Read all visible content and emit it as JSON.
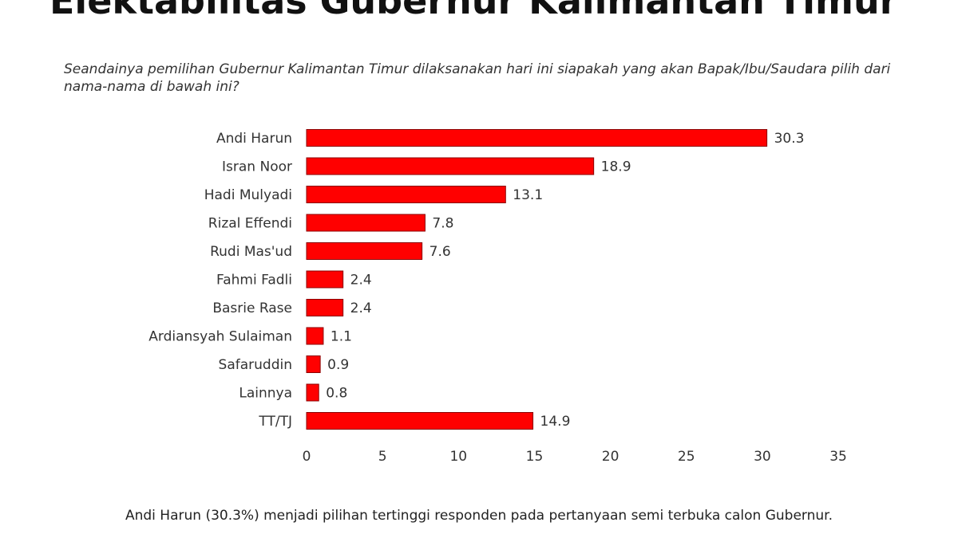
{
  "title": "Elektabilitas Gubernur Kalimantan Timur",
  "question": "Seandainya pemilihan Gubernur Kalimantan Timur dilaksanakan hari ini siapakah yang akan Bapak/Ibu/Saudara pilih dari nama-nama di bawah ini?",
  "footnote": "Andi Harun (30.3%) menjadi pilihan tertinggi responden pada pertanyaan semi terbuka calon Gubernur.",
  "chart_data": {
    "type": "bar",
    "orientation": "horizontal",
    "categories": [
      "Andi Harun",
      "Isran Noor",
      "Hadi Mulyadi",
      "Rizal Effendi",
      "Rudi Mas'ud",
      "Fahmi Fadli",
      "Basrie Rase",
      "Ardiansyah Sulaiman",
      "Safaruddin",
      "Lainnya",
      "TT/TJ"
    ],
    "values": [
      30.3,
      18.9,
      13.1,
      7.8,
      7.6,
      2.4,
      2.4,
      1.1,
      0.9,
      0.8,
      14.9
    ],
    "value_labels": [
      "30.3",
      "18.9",
      "13.1",
      "7.8",
      "7.6",
      "2.4",
      "2.4",
      "1.1",
      "0.9",
      "0.8",
      "14.9"
    ],
    "xlim": [
      0,
      35
    ],
    "xticks": [
      0,
      5,
      10,
      15,
      20,
      25,
      30,
      35
    ],
    "xtick_labels": [
      "0",
      "5",
      "10",
      "15",
      "20",
      "25",
      "30",
      "35"
    ],
    "bar_color": "#ff0000",
    "bar_edge_color": "#8b0000",
    "grid": false,
    "legend": "none"
  }
}
